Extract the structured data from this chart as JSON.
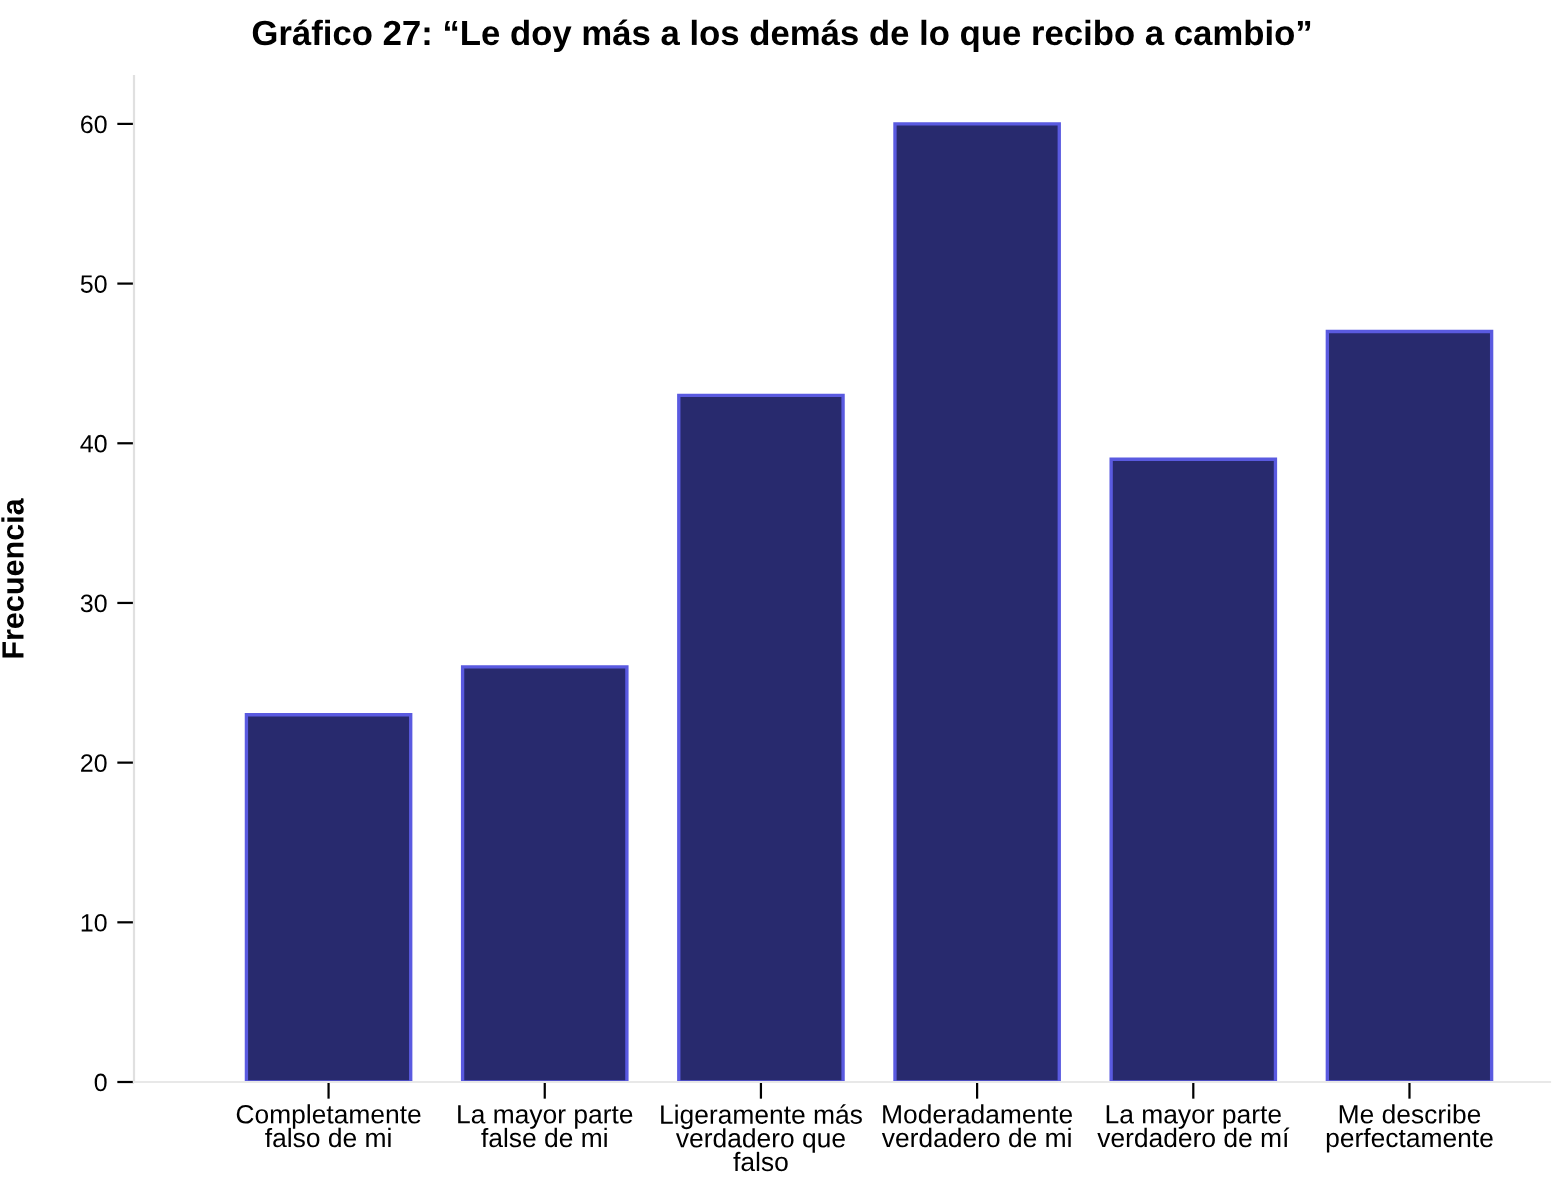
{
  "chart_data": {
    "type": "bar",
    "title": "Gráfico 27: “Le doy más a los demás de lo que recibo a cambio”",
    "ylabel": "Frecuencia",
    "categories": [
      "Completamente\nfalso de mi",
      "La mayor parte\nfalse de mi",
      "Ligeramente más\nverdadero que\nfalso",
      "Moderadamente\nverdadero de mi",
      "La mayor parte\nverdadero de mí",
      "Me describe\nperfectamente"
    ],
    "values": [
      23,
      26,
      43,
      60,
      39,
      47
    ],
    "color": "#282a6e",
    "ylim": [
      0,
      63
    ],
    "yticks": [
      0,
      10,
      20,
      30,
      40,
      50,
      60
    ],
    "grid": false
  }
}
